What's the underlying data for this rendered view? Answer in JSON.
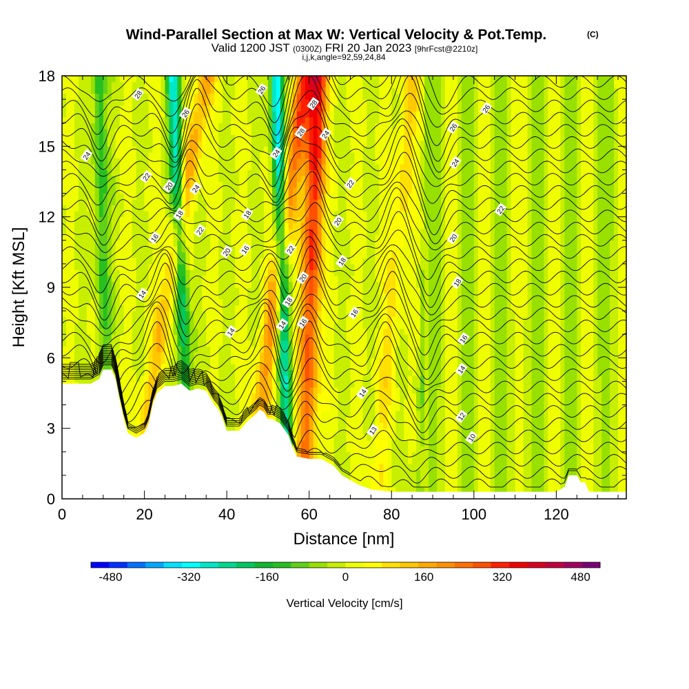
{
  "title": {
    "main": "Wind-Parallel Section at Max W: Vertical Velocity & Pot.Temp.",
    "copyright": "(C)",
    "valid_prefix": "Valid 1200 JST",
    "valid_utc": "(0300Z)",
    "valid_date": "FRI 20 Jan 2023",
    "forecast": "[9hrFcst@2210z]",
    "params": "i,j,k,angle=92,59,24,84"
  },
  "chart_data": {
    "type": "heatmap",
    "title": "Wind-Parallel Section at Max W: Vertical Velocity & Pot.Temp.",
    "xlabel": "Distance [nm]",
    "ylabel": "Height [Kft MSL]",
    "xlim": [
      0,
      137
    ],
    "ylim": [
      0,
      18
    ],
    "xticks": [
      0,
      20,
      40,
      60,
      80,
      100,
      120
    ],
    "yticks": [
      0,
      3,
      6,
      9,
      12,
      15,
      18
    ],
    "fill_variable": "Vertical Velocity [cm/s]",
    "contour_variable": "Pot.Temp.",
    "colorbar": {
      "title": "Vertical Velocity [cm/s]",
      "tick_labels": [
        "-480",
        "-320",
        "-160",
        "0",
        "160",
        "320",
        "480"
      ],
      "tick_values": [
        -480,
        -320,
        -160,
        0,
        160,
        320,
        480
      ],
      "min": -520,
      "max": 520,
      "step": 40,
      "colors": [
        "#0000ff",
        "#0030ff",
        "#0070ff",
        "#00a8ff",
        "#00e0ff",
        "#00ffff",
        "#00e8c8",
        "#00d890",
        "#00c860",
        "#10b830",
        "#28c020",
        "#60d018",
        "#98e000",
        "#c8ef00",
        "#f0ff00",
        "#ffff00",
        "#ffe000",
        "#ffc800",
        "#ffaa00",
        "#ff9000",
        "#ff7000",
        "#ff5000",
        "#ff2000",
        "#f00000",
        "#d80020",
        "#c00040",
        "#a00060",
        "#7a0078"
      ]
    },
    "updrafts": [
      {
        "base_x": 17,
        "top_x": 35,
        "peak": 200
      },
      {
        "base_x": 45,
        "top_x": 59,
        "peak": 280
      },
      {
        "base_x": 59,
        "top_x": 62,
        "peak": 420
      },
      {
        "base_x": 76,
        "top_x": 85,
        "peak": 120
      }
    ],
    "downdrafts": [
      {
        "base_x": 31,
        "top_x": 27,
        "peak": -320
      },
      {
        "base_x": 55,
        "top_x": 52,
        "peak": -380
      },
      {
        "base_x": 11,
        "top_x": 9,
        "peak": -180
      },
      {
        "base_x": 86,
        "top_x": 92,
        "peak": -100
      }
    ],
    "contour_labels": [
      {
        "text": "28",
        "x": 18.5,
        "y": 17.2
      },
      {
        "text": "26",
        "x": 30,
        "y": 16.4
      },
      {
        "text": "26",
        "x": 48.5,
        "y": 17.4
      },
      {
        "text": "28",
        "x": 58,
        "y": 15.6
      },
      {
        "text": "28",
        "x": 61,
        "y": 16.8
      },
      {
        "text": "24",
        "x": 64,
        "y": 15.5
      },
      {
        "text": "24",
        "x": 6,
        "y": 14.6
      },
      {
        "text": "24",
        "x": 52,
        "y": 14.7
      },
      {
        "text": "22",
        "x": 20.5,
        "y": 13.7
      },
      {
        "text": "20",
        "x": 26,
        "y": 13.3
      },
      {
        "text": "24",
        "x": 32.5,
        "y": 13.2
      },
      {
        "text": "22",
        "x": 70,
        "y": 13.4
      },
      {
        "text": "18",
        "x": 28.5,
        "y": 12.1
      },
      {
        "text": "22",
        "x": 33.5,
        "y": 11.4
      },
      {
        "text": "18",
        "x": 45,
        "y": 12.1
      },
      {
        "text": "20",
        "x": 67,
        "y": 11.8
      },
      {
        "text": "16",
        "x": 22.5,
        "y": 11.1
      },
      {
        "text": "20",
        "x": 40,
        "y": 10.5
      },
      {
        "text": "16",
        "x": 44.5,
        "y": 10.6
      },
      {
        "text": "22",
        "x": 55.5,
        "y": 10.6
      },
      {
        "text": "18",
        "x": 68,
        "y": 10.1
      },
      {
        "text": "20",
        "x": 58.5,
        "y": 9.4
      },
      {
        "text": "14",
        "x": 19.5,
        "y": 8.7
      },
      {
        "text": "18",
        "x": 55,
        "y": 8.4
      },
      {
        "text": "16",
        "x": 71,
        "y": 7.9
      },
      {
        "text": "14",
        "x": 53.5,
        "y": 7.4
      },
      {
        "text": "16",
        "x": 58.5,
        "y": 7.5
      },
      {
        "text": "14",
        "x": 41,
        "y": 7.1
      },
      {
        "text": "14",
        "x": 73,
        "y": 4.5
      },
      {
        "text": "13",
        "x": 75.5,
        "y": 2.9
      },
      {
        "text": "26",
        "x": 103,
        "y": 16.6
      },
      {
        "text": "26",
        "x": 95,
        "y": 15.8
      },
      {
        "text": "24",
        "x": 95.5,
        "y": 14.3
      },
      {
        "text": "22",
        "x": 106.5,
        "y": 12.3
      },
      {
        "text": "20",
        "x": 95,
        "y": 11.1
      },
      {
        "text": "18",
        "x": 96,
        "y": 9.2
      },
      {
        "text": "16",
        "x": 97.5,
        "y": 6.8
      },
      {
        "text": "14",
        "x": 97,
        "y": 5.5
      },
      {
        "text": "12",
        "x": 97,
        "y": 3.5
      },
      {
        "text": "10",
        "x": 99.5,
        "y": 2.6
      }
    ]
  }
}
